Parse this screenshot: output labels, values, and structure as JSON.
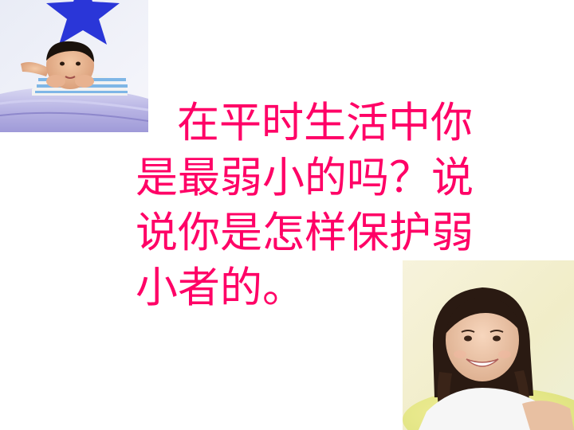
{
  "slide": {
    "text_color": "#ff0066",
    "lines": [
      "在平时生活中你",
      "是最弱小的吗？说",
      "说你是怎样保护弱",
      "小者的。"
    ]
  },
  "images": {
    "boy": "boy-lying-on-bed-photo",
    "girl": "smiling-girl-photo",
    "star": "blue-star-icon"
  }
}
